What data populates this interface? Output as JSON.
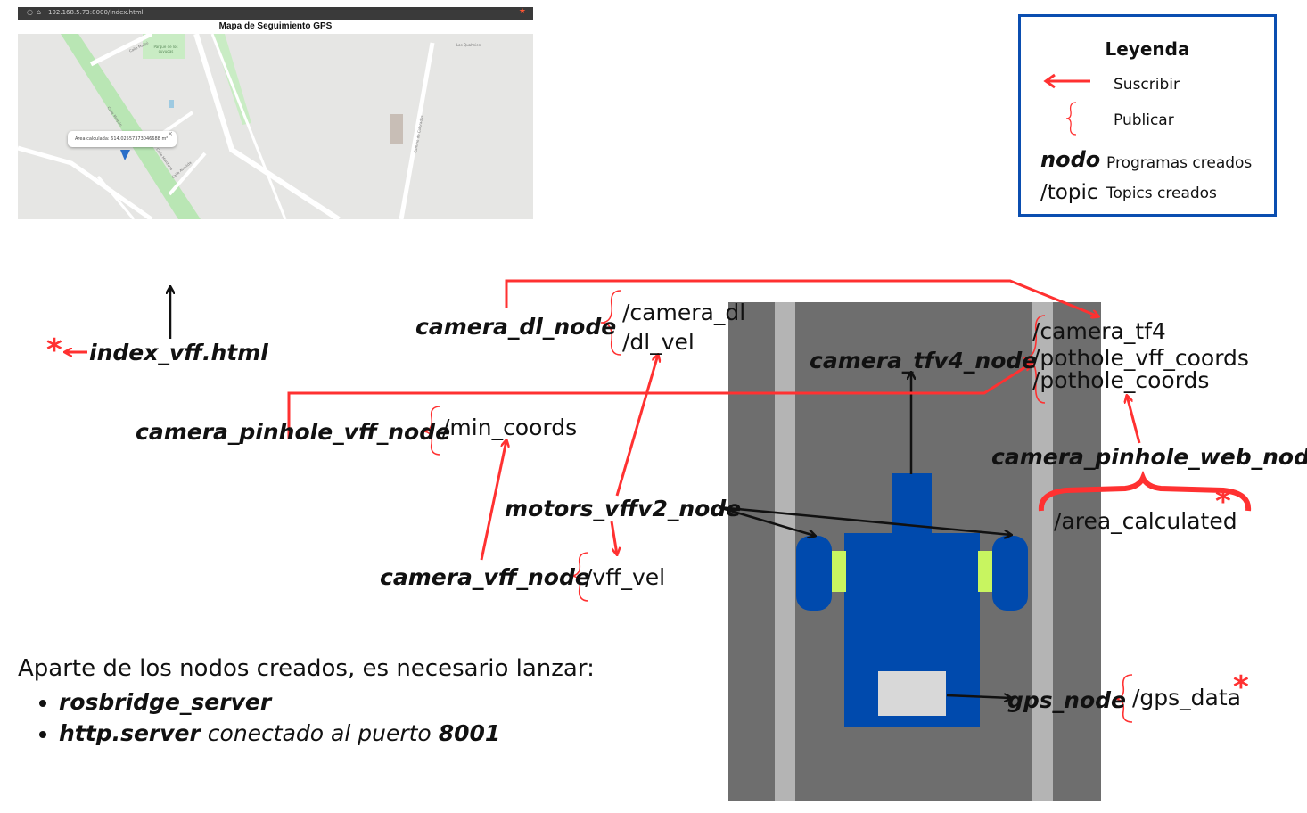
{
  "map": {
    "url": "192.168.5.73:8000/index.html",
    "title": "Mapa de Seguimiento GPS",
    "popup": "Área calculada: 614.02557373046688 m²",
    "popup_close": "×",
    "park_label": "Parque de los cuyugas",
    "place_label": "Los Quahnien",
    "streets": [
      "Calle Maipú",
      "Calle Maipún",
      "Calle Manzana",
      "Calle Avenida",
      "Camino de Colorados"
    ]
  },
  "legend": {
    "title": "Leyenda",
    "subscribe": "Suscribir",
    "publish": "Publicar",
    "node_term": "nodo",
    "node_desc": "Programas creados",
    "topic_term": "/topic",
    "topic_desc": "Topics creados"
  },
  "nodes": {
    "index": "index_vff.html",
    "camera_dl": "camera_dl_node",
    "camera_pinhole_vff": "camera_pinhole_vff_node",
    "motors": "motors_vffv2_node",
    "camera_vff": "camera_vff_node",
    "camera_tfv4": "camera_tfv4_node",
    "camera_pinhole_web": "camera_pinhole_web_node",
    "gps": "gps_node"
  },
  "topics": {
    "camera_dl": "/camera_dl",
    "dl_vel": "/dl_vel",
    "min_coords": "/min_coords",
    "vff_vel": "/vff_vel",
    "camera_tf4": "/camera_tf4",
    "pothole_vff_coords": "/pothole_vff_coords",
    "pothole_coords": "/pothole_coords",
    "area_calculated": "/area_calculated",
    "gps_data": "/gps_data"
  },
  "note": {
    "intro": "Aparte de los nodos creados, es necesario lanzar:",
    "item1": "rosbridge_server",
    "item2_bold": "http.server",
    "item2_italic": "conectado al puerto",
    "item2_port": "8001"
  },
  "markers": {
    "star": "*"
  },
  "colors": {
    "accent": "#ff3131",
    "blue": "#004aad",
    "legend_border": "#0b4eb0",
    "axle": "#c8f560"
  }
}
